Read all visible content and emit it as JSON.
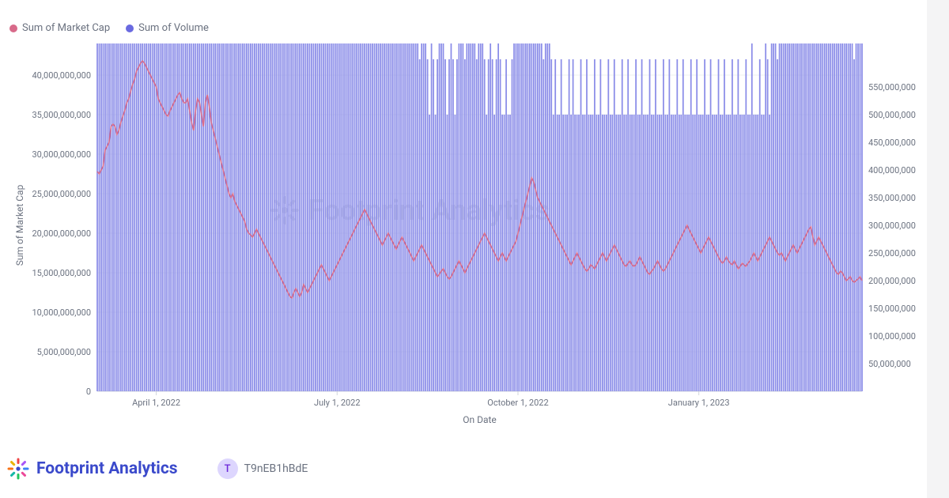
{
  "legend": {
    "series1": {
      "label": "Sum of Market Cap",
      "color": "#d86a8a"
    },
    "series2": {
      "label": "Sum of Volume",
      "color": "#6a6ae0"
    }
  },
  "watermark": {
    "text": "Footprint Analytics"
  },
  "footer": {
    "brand": "Footprint Analytics",
    "user_initial": "T",
    "user_id": "T9nEB1hBdE"
  },
  "chart": {
    "type": "combo-line-bar",
    "background_color": "#ffffff",
    "grid_color": "#eef0f2",
    "axis_color": "#d1d5db",
    "label_color": "#6b7280",
    "label_fontsize": 11,
    "axis_title_fontsize": 12,
    "x_axis": {
      "title": "On Date",
      "tick_labels": [
        "April 1, 2022",
        "July 1, 2022",
        "October 1, 2022",
        "January 1, 2023"
      ],
      "tick_positions_idx": [
        30,
        122,
        214,
        306
      ],
      "n_points": 390
    },
    "y_left": {
      "title": "Sum of Market Cap",
      "min": 0,
      "max": 42000000000,
      "ticks": [
        0,
        5000000000,
        10000000000,
        15000000000,
        20000000000,
        25000000000,
        30000000000,
        35000000000,
        40000000000
      ],
      "tick_labels": [
        "0",
        "5,000,000,000",
        "10,000,000,000",
        "15,000,000,000",
        "20,000,000,000",
        "25,000,000,000",
        "30,000,000,000",
        "35,000,000,000",
        "40,000,000,000"
      ]
    },
    "y_right": {
      "min": 0,
      "max": 600000000,
      "ticks": [
        50000000,
        100000000,
        150000000,
        200000000,
        250000000,
        300000000,
        350000000,
        400000000,
        450000000,
        500000000,
        550000000
      ],
      "tick_labels": [
        "50,000,000",
        "100,000,000",
        "150,000,000",
        "200,000,000",
        "250,000,000",
        "300,000,000",
        "350,000,000",
        "400,000,000",
        "450,000,000",
        "500,000,000",
        "550,000,000"
      ]
    },
    "line_color": "#d86a8a",
    "line_width": 1.5,
    "bar_color": "#8a8ce8",
    "bar_width_ratio": 0.7,
    "market_cap_billions": [
      27.8,
      27.5,
      28.0,
      28.5,
      30.5,
      31.0,
      31.5,
      33.5,
      33.8,
      33.5,
      32.5,
      33.0,
      34.0,
      34.8,
      35.5,
      36.5,
      37.0,
      38.0,
      38.8,
      39.5,
      40.5,
      41.0,
      41.5,
      41.8,
      41.5,
      41.0,
      40.5,
      40.0,
      39.5,
      39.0,
      38.5,
      37.0,
      36.5,
      36.0,
      35.5,
      35.0,
      34.8,
      35.5,
      36.0,
      36.5,
      37.0,
      37.5,
      37.8,
      37.0,
      36.5,
      36.5,
      37.0,
      35.5,
      34.0,
      33.0,
      35.5,
      37.0,
      36.5,
      35.0,
      33.5,
      36.5,
      37.5,
      36.0,
      34.0,
      33.0,
      32.0,
      31.0,
      30.0,
      29.0,
      28.0,
      27.0,
      26.0,
      25.0,
      24.5,
      25.0,
      24.0,
      23.5,
      23.0,
      22.5,
      22.0,
      21.5,
      20.5,
      20.0,
      19.8,
      19.5,
      20.0,
      20.5,
      20.0,
      19.5,
      19.0,
      18.5,
      18.0,
      17.5,
      17.0,
      16.5,
      16.0,
      15.5,
      15.0,
      14.5,
      14.0,
      13.5,
      13.0,
      12.5,
      12.0,
      11.8,
      12.5,
      13.0,
      12.5,
      12.0,
      12.5,
      13.5,
      13.0,
      12.5,
      13.0,
      13.5,
      14.0,
      14.5,
      15.0,
      15.5,
      16.0,
      15.5,
      15.0,
      14.5,
      14.0,
      14.5,
      15.0,
      15.5,
      16.0,
      16.5,
      17.0,
      17.5,
      18.0,
      18.5,
      19.0,
      19.5,
      20.0,
      20.5,
      21.0,
      21.5,
      22.0,
      22.5,
      23.0,
      22.5,
      22.0,
      21.5,
      21.0,
      20.5,
      20.0,
      19.5,
      19.0,
      18.5,
      19.0,
      19.5,
      20.0,
      19.5,
      19.0,
      18.5,
      18.0,
      18.5,
      19.0,
      19.5,
      19.0,
      18.5,
      18.0,
      17.5,
      17.0,
      16.5,
      17.0,
      17.5,
      18.0,
      18.5,
      18.0,
      17.5,
      17.0,
      16.5,
      16.0,
      15.5,
      15.0,
      14.5,
      14.8,
      15.2,
      15.5,
      15.0,
      14.5,
      14.2,
      14.5,
      15.0,
      15.5,
      16.0,
      16.5,
      16.0,
      15.5,
      15.0,
      15.5,
      16.0,
      16.5,
      17.0,
      17.5,
      18.0,
      18.5,
      19.0,
      19.5,
      20.0,
      19.5,
      19.0,
      18.5,
      18.0,
      17.5,
      17.0,
      16.5,
      17.0,
      17.5,
      17.0,
      16.5,
      17.0,
      17.5,
      18.0,
      18.5,
      19.0,
      20.0,
      21.0,
      22.0,
      23.0,
      24.0,
      25.0,
      26.0,
      27.0,
      26.5,
      25.5,
      24.5,
      24.0,
      23.5,
      23.0,
      22.5,
      22.0,
      21.5,
      21.0,
      20.5,
      20.0,
      19.5,
      19.0,
      18.5,
      18.0,
      17.5,
      17.0,
      16.5,
      16.0,
      16.5,
      17.0,
      17.5,
      17.0,
      16.5,
      16.0,
      15.5,
      15.2,
      15.5,
      16.0,
      15.8,
      15.5,
      16.0,
      16.5,
      17.0,
      17.5,
      17.0,
      16.5,
      17.0,
      17.5,
      18.0,
      18.5,
      18.0,
      17.5,
      17.0,
      16.5,
      16.0,
      15.8,
      16.2,
      16.5,
      16.0,
      15.8,
      16.0,
      16.5,
      17.0,
      16.5,
      16.0,
      15.5,
      15.0,
      14.8,
      15.2,
      15.5,
      16.0,
      16.5,
      16.0,
      15.5,
      15.2,
      15.5,
      16.0,
      16.5,
      17.0,
      17.5,
      18.0,
      18.5,
      19.0,
      19.5,
      20.0,
      20.5,
      21.0,
      20.5,
      20.0,
      19.5,
      19.0,
      18.5,
      18.0,
      17.5,
      18.0,
      18.5,
      19.0,
      19.5,
      19.0,
      18.5,
      18.0,
      17.5,
      17.0,
      16.5,
      16.2,
      16.5,
      17.0,
      16.5,
      16.2,
      16.0,
      16.5,
      16.0,
      15.5,
      15.8,
      16.2,
      16.0,
      15.8,
      16.2,
      16.5,
      17.0,
      17.5,
      17.0,
      16.5,
      17.0,
      17.5,
      18.0,
      18.5,
      19.0,
      19.5,
      19.0,
      18.5,
      18.0,
      17.5,
      17.2,
      17.5,
      17.0,
      16.5,
      17.0,
      17.5,
      18.0,
      18.5,
      18.0,
      17.5,
      18.0,
      18.5,
      19.0,
      19.5,
      20.0,
      20.5,
      20.8,
      19.5,
      18.5,
      19.0,
      19.5,
      19.0,
      18.5,
      18.0,
      17.5,
      17.0,
      16.5,
      16.0,
      15.5,
      15.0,
      14.8,
      15.2,
      15.0,
      14.5,
      14.0,
      14.2,
      14.5,
      14.0,
      13.8,
      14.0,
      14.2,
      14.5,
      14.0
    ],
    "volume_billions": [
      2.5,
      3.0,
      3.5,
      4.0,
      4.5,
      5.0,
      5.5,
      6.0,
      10.0,
      7.0,
      6.5,
      5.5,
      6.0,
      6.5,
      7.0,
      8.0,
      7.5,
      8.5,
      9.0,
      9.5,
      10.0,
      10.5,
      11.0,
      11.5,
      10.0,
      9.5,
      9.0,
      10.5,
      13.5,
      11.0,
      10.5,
      10.0,
      11.5,
      12.0,
      11.0,
      10.5,
      11.5,
      13.0,
      13.5,
      12.0,
      11.0,
      10.5,
      10.0,
      9.5,
      12.5,
      11.0,
      10.5,
      10.0,
      11.0,
      12.0,
      11.5,
      16.0,
      24.5,
      41.5,
      15.0,
      10.0,
      8.0,
      7.0,
      6.0,
      5.5,
      5.0,
      4.5,
      6.0,
      5.0,
      4.5,
      4.0,
      5.5,
      5.0,
      4.5,
      4.0,
      3.5,
      3.5,
      4.0,
      3.5,
      3.0,
      3.0,
      3.5,
      3.0,
      2.8,
      2.5,
      2.2,
      2.0,
      3.0,
      2.5,
      2.2,
      2.0,
      2.5,
      2.2,
      2.0,
      1.8,
      1.5,
      1.8,
      2.0,
      2.2,
      2.5,
      2.2,
      2.0,
      1.8,
      1.5,
      1.8,
      2.0,
      1.5,
      1.8,
      1.5,
      1.8,
      2.0,
      1.8,
      1.5,
      1.8,
      2.0,
      1.8,
      1.5,
      1.2,
      1.5,
      2.0,
      1.8,
      1.5,
      1.2,
      1.0,
      1.2,
      1.5,
      1.8,
      2.0,
      1.8,
      1.5,
      1.2,
      1.0,
      1.2,
      1.5,
      1.8,
      2.0,
      1.8,
      2.0,
      2.2,
      2.5,
      2.2,
      2.0,
      1.8,
      1.5,
      1.2,
      1.0,
      1.2,
      1.5,
      1.8,
      1.5,
      1.2,
      1.0,
      1.2,
      1.5,
      1.2,
      1.0,
      1.2,
      1.0,
      0.8,
      1.0,
      1.2,
      1.0,
      0.8,
      0.8,
      1.0,
      0.8,
      0.8,
      1.0,
      0.8,
      0.6,
      0.8,
      1.0,
      0.8,
      0.6,
      0.5,
      0.8,
      0.6,
      0.5,
      0.6,
      0.8,
      1.0,
      0.8,
      0.6,
      0.5,
      0.6,
      0.8,
      0.6,
      0.5,
      0.6,
      0.8,
      1.0,
      0.8,
      0.6,
      0.8,
      1.0,
      1.2,
      1.0,
      0.8,
      0.6,
      0.8,
      1.0,
      0.8,
      0.6,
      0.5,
      0.6,
      0.8,
      0.6,
      0.5,
      0.6,
      0.8,
      0.6,
      0.5,
      0.5,
      0.6,
      0.5,
      0.5,
      0.6,
      0.8,
      1.0,
      1.2,
      1.5,
      1.8,
      2.0,
      1.8,
      1.5,
      1.2,
      1.0,
      0.8,
      1.0,
      1.2,
      1.0,
      0.8,
      0.6,
      0.8,
      1.0,
      0.8,
      0.6,
      0.5,
      0.6,
      0.5,
      0.5,
      0.6,
      0.5,
      0.5,
      0.5,
      0.6,
      0.5,
      0.6,
      0.5,
      0.5,
      0.5,
      0.6,
      0.5,
      0.5,
      0.6,
      0.5,
      0.5,
      0.5,
      0.6,
      0.5,
      0.5,
      0.6,
      0.5,
      0.5,
      0.5,
      0.6,
      0.5,
      0.5,
      0.6,
      0.5,
      0.5,
      0.5,
      0.6,
      0.5,
      0.5,
      0.6,
      0.5,
      0.5,
      0.5,
      0.6,
      0.5,
      0.5,
      0.6,
      0.5,
      0.5,
      0.5,
      0.6,
      0.5,
      0.5,
      0.6,
      0.5,
      0.5,
      0.5,
      0.6,
      0.5,
      0.5,
      0.6,
      0.5,
      0.5,
      0.5,
      0.6,
      0.5,
      0.5,
      0.6,
      0.5,
      0.5,
      0.5,
      0.6,
      0.5,
      0.5,
      0.6,
      0.5,
      0.5,
      0.5,
      0.6,
      0.5,
      0.5,
      0.6,
      0.5,
      0.5,
      0.5,
      0.6,
      0.5,
      0.5,
      0.6,
      0.5,
      0.5,
      0.5,
      0.6,
      0.5,
      0.5,
      0.6,
      0.5,
      0.5,
      0.5,
      0.6,
      0.5,
      0.5,
      0.7,
      0.5,
      0.5,
      0.5,
      0.6,
      0.5,
      0.5,
      0.8,
      0.6,
      0.5,
      0.8,
      1.0,
      0.8,
      0.6,
      0.8,
      1.0,
      1.2,
      1.0,
      0.8,
      1.0,
      1.2,
      1.5,
      1.2,
      1.0,
      0.8,
      1.0,
      1.2,
      1.5,
      1.2,
      1.0,
      0.8,
      1.0,
      1.2,
      1.5,
      1.8,
      2.0,
      2.2,
      2.8,
      2.0,
      1.8,
      1.5,
      1.2,
      1.0,
      1.2,
      1.5,
      1.2,
      1.0,
      0.8,
      1.0,
      1.2,
      1.0,
      0.8,
      0.6,
      0.8,
      1.0,
      0.8,
      0.8
    ]
  }
}
